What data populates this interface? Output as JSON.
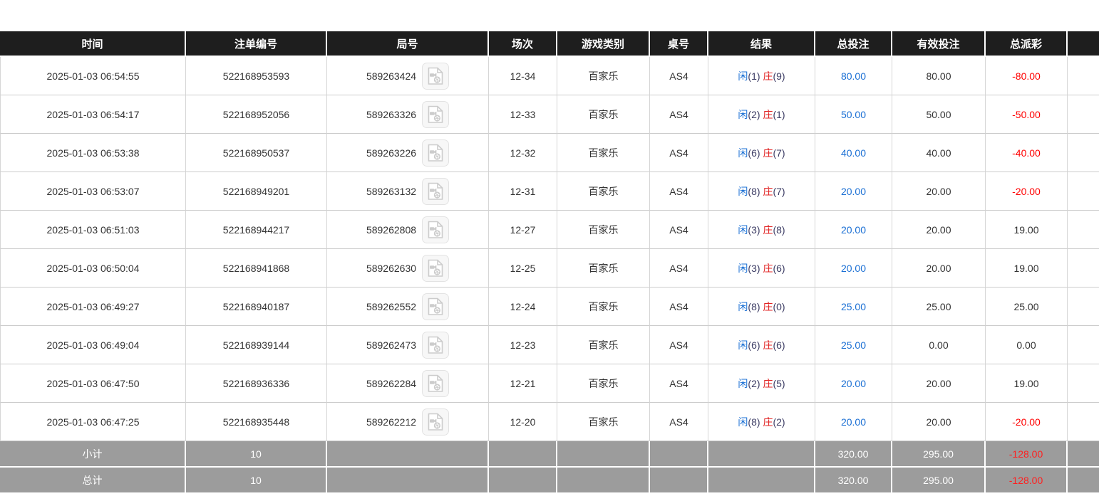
{
  "table": {
    "columns": [
      {
        "key": "time",
        "label": "时间"
      },
      {
        "key": "bet_no",
        "label": "注单编号"
      },
      {
        "key": "round_no",
        "label": "局号"
      },
      {
        "key": "session",
        "label": "场次"
      },
      {
        "key": "game_type",
        "label": "游戏类别"
      },
      {
        "key": "table_no",
        "label": "桌号"
      },
      {
        "key": "result",
        "label": "结果"
      },
      {
        "key": "total_bet",
        "label": "总投注"
      },
      {
        "key": "valid_bet",
        "label": "有效投注"
      },
      {
        "key": "payout",
        "label": "总派彩"
      },
      {
        "key": "extra",
        "label": ""
      }
    ],
    "result_labels": {
      "player": "闲",
      "banker": "庄"
    },
    "icons": {
      "video_icon": "video-file-icon"
    },
    "rows": [
      {
        "time": "2025-01-03 06:54:55",
        "bet_no": "522168953593",
        "round_no": "589263424",
        "session": "12-34",
        "game_type": "百家乐",
        "table_no": "AS4",
        "result_player": "(1)",
        "result_banker": "(9)",
        "total_bet": "80.00",
        "valid_bet": "80.00",
        "payout": "-80.00"
      },
      {
        "time": "2025-01-03 06:54:17",
        "bet_no": "522168952056",
        "round_no": "589263326",
        "session": "12-33",
        "game_type": "百家乐",
        "table_no": "AS4",
        "result_player": "(2)",
        "result_banker": "(1)",
        "total_bet": "50.00",
        "valid_bet": "50.00",
        "payout": "-50.00"
      },
      {
        "time": "2025-01-03 06:53:38",
        "bet_no": "522168950537",
        "round_no": "589263226",
        "session": "12-32",
        "game_type": "百家乐",
        "table_no": "AS4",
        "result_player": "(6)",
        "result_banker": "(7)",
        "total_bet": "40.00",
        "valid_bet": "40.00",
        "payout": "-40.00"
      },
      {
        "time": "2025-01-03 06:53:07",
        "bet_no": "522168949201",
        "round_no": "589263132",
        "session": "12-31",
        "game_type": "百家乐",
        "table_no": "AS4",
        "result_player": "(8)",
        "result_banker": "(7)",
        "total_bet": "20.00",
        "valid_bet": "20.00",
        "payout": "-20.00"
      },
      {
        "time": "2025-01-03 06:51:03",
        "bet_no": "522168944217",
        "round_no": "589262808",
        "session": "12-27",
        "game_type": "百家乐",
        "table_no": "AS4",
        "result_player": "(3)",
        "result_banker": "(8)",
        "total_bet": "20.00",
        "valid_bet": "20.00",
        "payout": "19.00"
      },
      {
        "time": "2025-01-03 06:50:04",
        "bet_no": "522168941868",
        "round_no": "589262630",
        "session": "12-25",
        "game_type": "百家乐",
        "table_no": "AS4",
        "result_player": "(3)",
        "result_banker": "(6)",
        "total_bet": "20.00",
        "valid_bet": "20.00",
        "payout": "19.00"
      },
      {
        "time": "2025-01-03 06:49:27",
        "bet_no": "522168940187",
        "round_no": "589262552",
        "session": "12-24",
        "game_type": "百家乐",
        "table_no": "AS4",
        "result_player": "(8)",
        "result_banker": "(0)",
        "total_bet": "25.00",
        "valid_bet": "25.00",
        "payout": "25.00"
      },
      {
        "time": "2025-01-03 06:49:04",
        "bet_no": "522168939144",
        "round_no": "589262473",
        "session": "12-23",
        "game_type": "百家乐",
        "table_no": "AS4",
        "result_player": "(6)",
        "result_banker": "(6)",
        "total_bet": "25.00",
        "valid_bet": "0.00",
        "payout": "0.00"
      },
      {
        "time": "2025-01-03 06:47:50",
        "bet_no": "522168936336",
        "round_no": "589262284",
        "session": "12-21",
        "game_type": "百家乐",
        "table_no": "AS4",
        "result_player": "(2)",
        "result_banker": "(5)",
        "total_bet": "20.00",
        "valid_bet": "20.00",
        "payout": "19.00"
      },
      {
        "time": "2025-01-03 06:47:25",
        "bet_no": "522168935448",
        "round_no": "589262212",
        "session": "12-20",
        "game_type": "百家乐",
        "table_no": "AS4",
        "result_player": "(8)",
        "result_banker": "(2)",
        "total_bet": "20.00",
        "valid_bet": "20.00",
        "payout": "-20.00"
      }
    ],
    "subtotal": {
      "label": "小计",
      "count": "10",
      "total_bet": "320.00",
      "valid_bet": "295.00",
      "payout": "-128.00"
    },
    "total": {
      "label": "总计",
      "count": "10",
      "total_bet": "320.00",
      "valid_bet": "295.00",
      "payout": "-128.00"
    }
  },
  "colors": {
    "header_bg": "#1e1e1e",
    "footer_bg": "#9c9c9c",
    "bet_blue": "#1a6fd4",
    "player_blue": "#1a6fd4",
    "banker_red": "#e02222",
    "loss_red": "#ff0000",
    "text": "#333333"
  }
}
